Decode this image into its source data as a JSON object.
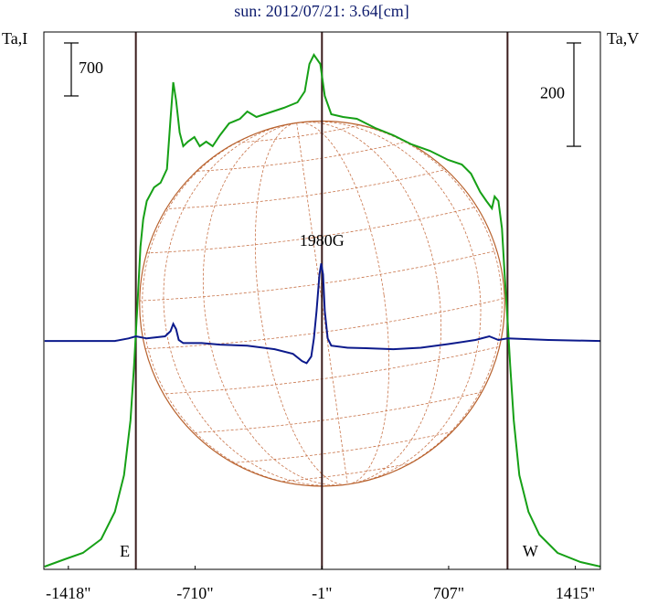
{
  "chart_data": {
    "type": "line",
    "title": "sun: 2012/07/21: 3.64[cm]",
    "ylabel": "Ta,I",
    "y2label": "Ta,V",
    "xlim": [
      -1555,
      1555
    ],
    "ylim": [
      0,
      7100
    ],
    "y2lim": [
      -440,
      600
    ],
    "xticks": [
      {
        "value": -1418,
        "label": "-1418\""
      },
      {
        "value": -710,
        "label": "-710\""
      },
      {
        "value": -1,
        "label": "-1\""
      },
      {
        "value": 707,
        "label": "707\""
      },
      {
        "value": 1415,
        "label": "1415\""
      }
    ],
    "scale_bars": [
      {
        "value": 700,
        "axis": "y"
      },
      {
        "value": 200,
        "axis": "y2"
      }
    ],
    "vlines": [
      -1041,
      -1,
      1036
    ],
    "vline_color": "#3a1c1c",
    "disk": {
      "radius": 1020,
      "color": "#b8622e"
    },
    "annotations": [
      {
        "text": "E",
        "x": -1041
      },
      {
        "text": "W",
        "x": 1036
      },
      {
        "text": "1980G",
        "x": -1
      }
    ],
    "series": [
      {
        "color": "#16a016",
        "axis": "y",
        "x": [
          -1551,
          -1439,
          -1337,
          -1235,
          -1158,
          -1107,
          -1071,
          -1051,
          -1031,
          -1015,
          -1000,
          -980,
          -939,
          -903,
          -867,
          -847,
          -832,
          -816,
          -796,
          -776,
          -750,
          -714,
          -684,
          -648,
          -612,
          -571,
          -520,
          -459,
          -418,
          -367,
          -291,
          -214,
          -138,
          -97,
          -71,
          -46,
          -10,
          15,
          51,
          117,
          194,
          296,
          398,
          500,
          602,
          704,
          781,
          832,
          883,
          918,
          949,
          964,
          985,
          1005,
          1020,
          1036,
          1051,
          1071,
          1102,
          1153,
          1214,
          1316,
          1444,
          1556
        ],
        "values": [
          36,
          133,
          217,
          398,
          761,
          1244,
          1968,
          2693,
          3538,
          4262,
          4625,
          4866,
          5047,
          5108,
          5289,
          5953,
          6436,
          6194,
          5772,
          5591,
          5651,
          5711,
          5591,
          5651,
          5591,
          5736,
          5893,
          5953,
          6050,
          5977,
          6038,
          6098,
          6170,
          6315,
          6677,
          6798,
          6677,
          6255,
          6013,
          5977,
          5953,
          5832,
          5736,
          5615,
          5530,
          5410,
          5349,
          5228,
          4987,
          4866,
          4770,
          4927,
          4866,
          4504,
          3900,
          3297,
          2693,
          1968,
          1244,
          761,
          459,
          217,
          97,
          36
        ]
      },
      {
        "color": "#0c1a8c",
        "axis": "y2",
        "x": [
          -1551,
          -1158,
          -1082,
          -1041,
          -980,
          -878,
          -847,
          -832,
          -816,
          -801,
          -776,
          -673,
          -571,
          -418,
          -265,
          -163,
          -112,
          -87,
          -61,
          -46,
          -31,
          -15,
          -5,
          5,
          15,
          31,
          51,
          143,
          245,
          398,
          551,
          704,
          857,
          934,
          985,
          1036,
          1265,
          1556
        ],
        "values": [
          2,
          2,
          7,
          11,
          7,
          11,
          21,
          35,
          25,
          4,
          -2,
          -2,
          -5,
          -7,
          -14,
          -23,
          -37,
          -41,
          -28,
          7,
          60,
          131,
          152,
          131,
          60,
          7,
          -7,
          -11,
          -12,
          -14,
          -11,
          -4,
          4,
          11,
          4,
          7,
          4,
          2
        ]
      }
    ]
  }
}
